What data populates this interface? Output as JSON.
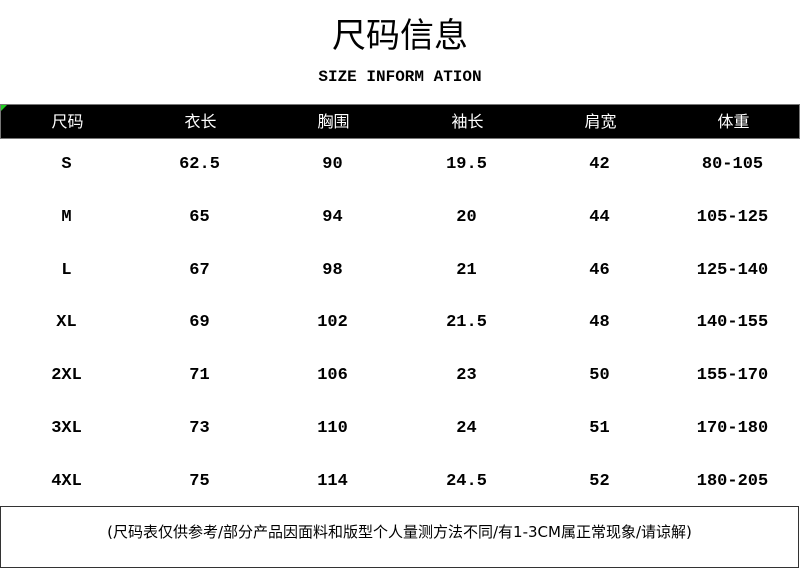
{
  "title": "尺码信息",
  "subtitle": "SIZE INFORM ATION",
  "headers": [
    "尺码",
    "衣长",
    "胸围",
    "袖长",
    "肩宽",
    "体重"
  ],
  "rows": [
    [
      "S",
      "62.5",
      "90",
      "19.5",
      "42",
      "80-105"
    ],
    [
      "M",
      "65",
      "94",
      "20",
      "44",
      "105-125"
    ],
    [
      "L",
      "67",
      "98",
      "21",
      "46",
      "125-140"
    ],
    [
      "XL",
      "69",
      "102",
      "21.5",
      "48",
      "140-155"
    ],
    [
      "2XL",
      "71",
      "106",
      "23",
      "50",
      "155-170"
    ],
    [
      "3XL",
      "73",
      "110",
      "24",
      "51",
      "170-180"
    ],
    [
      "4XL",
      "75",
      "114",
      "24.5",
      "52",
      "180-205"
    ]
  ],
  "note": "(尺码表仅供参考/部分产品因面料和版型个人量测方法不同/有1-3CM属正常现象/请谅解)",
  "colors": {
    "header_bg": "#000000",
    "header_text": "#ffffff",
    "corner_accent": "#22cc22"
  }
}
